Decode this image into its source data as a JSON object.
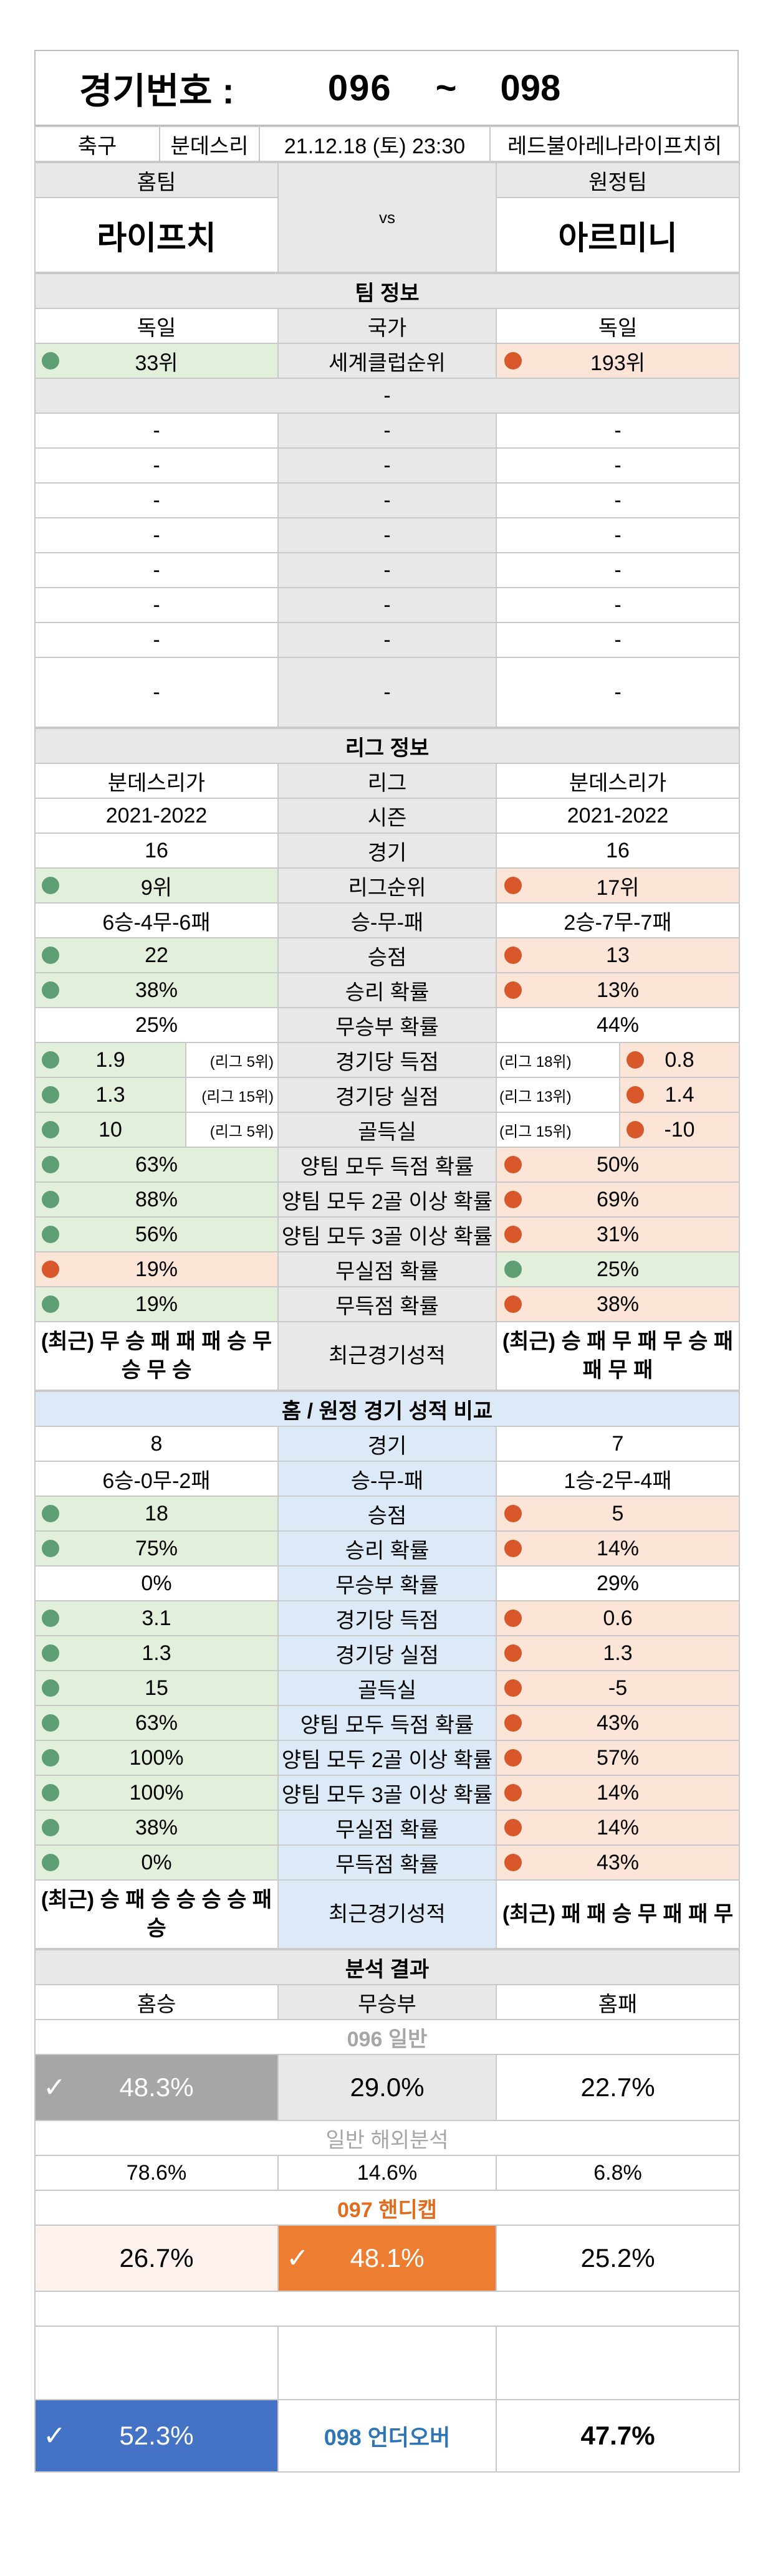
{
  "header": {
    "label": "경기번호 :",
    "from": "096",
    "sep": "~",
    "to": "098"
  },
  "match": {
    "sport": "축구",
    "league": "분데스리",
    "datetime": "21.12.18 (토) 23:30",
    "venue": "레드불아레나라이프치히",
    "home_label": "홈팀",
    "away_label": "원정팀",
    "home": "라이프치",
    "vs": "vs",
    "away": "아르미니"
  },
  "team_info": {
    "title": "팀 정보",
    "country_label": "국가",
    "home_country": "독일",
    "away_country": "독일",
    "rank_label": "세계클럽순위",
    "home_rank": "33위",
    "away_rank": "193위",
    "blank": "-",
    "dash": "-"
  },
  "league_info": {
    "title": "리그 정보",
    "rows": [
      {
        "label": "리그",
        "home": "분데스리가",
        "away": "분데스리가"
      },
      {
        "label": "시즌",
        "home": "2021-2022",
        "away": "2021-2022"
      },
      {
        "label": "경기",
        "home": "16",
        "away": "16"
      },
      {
        "label": "리그순위",
        "home": "9위",
        "away": "17위",
        "hc": "green",
        "ac": "peach"
      },
      {
        "label": "승-무-패",
        "home": "6승-4무-6패",
        "away": "2승-7무-7패"
      },
      {
        "label": "승점",
        "home": "22",
        "away": "13",
        "hc": "green",
        "ac": "peach"
      },
      {
        "label": "승리 확률",
        "home": "38%",
        "away": "13%",
        "hc": "green",
        "ac": "peach"
      },
      {
        "label": "무승부 확률",
        "home": "25%",
        "away": "44%"
      }
    ],
    "split_rows": [
      {
        "label": "경기당 득점",
        "home": "1.9",
        "home_rank": "(리그 5위)",
        "away": "0.8",
        "away_rank": "(리그 18위)"
      },
      {
        "label": "경기당 실점",
        "home": "1.3",
        "home_rank": "(리그 15위)",
        "away": "1.4",
        "away_rank": "(리그 13위)"
      },
      {
        "label": "골득실",
        "home": "10",
        "home_rank": "(리그 5위)",
        "away": "-10",
        "away_rank": "(리그 15위)"
      }
    ],
    "rows2": [
      {
        "label": "양팀 모두 득점 확률",
        "home": "63%",
        "away": "50%",
        "hc": "green",
        "ac": "peach"
      },
      {
        "label": "양팀 모두 2골 이상 확률",
        "home": "88%",
        "away": "69%",
        "hc": "green",
        "ac": "peach"
      },
      {
        "label": "양팀 모두 3골 이상 확률",
        "home": "56%",
        "away": "31%",
        "hc": "green",
        "ac": "peach"
      },
      {
        "label": "무실점 확률",
        "home": "19%",
        "away": "25%",
        "hc": "peach",
        "ac": "green"
      },
      {
        "label": "무득점 확률",
        "home": "19%",
        "away": "38%",
        "hc": "green",
        "ac": "peach"
      }
    ],
    "recent_label": "최근경기성적",
    "home_recent": "(최근) 무 승 패 패 패 승 무 승 무 승",
    "away_recent": "(최근) 승 패 무 패 무 승 패 패 무 패"
  },
  "homeaway": {
    "title": "홈 / 원정 경기 성적 비교",
    "rows": [
      {
        "label": "경기",
        "home": "8",
        "away": "7"
      },
      {
        "label": "승-무-패",
        "home": "6승-0무-2패",
        "away": "1승-2무-4패"
      },
      {
        "label": "승점",
        "home": "18",
        "away": "5",
        "hc": "green",
        "ac": "peach"
      },
      {
        "label": "승리 확률",
        "home": "75%",
        "away": "14%",
        "hc": "green",
        "ac": "peach"
      },
      {
        "label": "무승부 확률",
        "home": "0%",
        "away": "29%"
      },
      {
        "label": "경기당 득점",
        "home": "3.1",
        "away": "0.6",
        "hc": "green",
        "ac": "peach"
      },
      {
        "label": "경기당 실점",
        "home": "1.3",
        "away": "1.3",
        "hc": "green",
        "ac": "peach"
      },
      {
        "label": "골득실",
        "home": "15",
        "away": "-5",
        "hc": "green",
        "ac": "peach"
      },
      {
        "label": "양팀 모두 득점 확률",
        "home": "63%",
        "away": "43%",
        "hc": "green",
        "ac": "peach"
      },
      {
        "label": "양팀 모두 2골 이상 확률",
        "home": "100%",
        "away": "57%",
        "hc": "green",
        "ac": "peach"
      },
      {
        "label": "양팀 모두 3골 이상 확률",
        "home": "100%",
        "away": "14%",
        "hc": "green",
        "ac": "peach"
      },
      {
        "label": "무실점 확률",
        "home": "38%",
        "away": "14%",
        "hc": "green",
        "ac": "peach"
      },
      {
        "label": "무득점 확률",
        "home": "0%",
        "away": "43%",
        "hc": "green",
        "ac": "peach"
      }
    ],
    "recent_label": "최근경기성적",
    "home_recent": "(최근) 승 패 승 승 승 승 패 승",
    "away_recent": "(최근) 패 패 승 무 패 패 무"
  },
  "analysis": {
    "title": "분석 결과",
    "col_home": "홈승",
    "col_draw": "무승부",
    "col_away": "홈패",
    "general_title": "096 일반",
    "general": {
      "home": "48.3%",
      "draw": "29.0%",
      "away": "22.7%"
    },
    "overseas_title": "일반 해외분석",
    "overseas": {
      "home": "78.6%",
      "draw": "14.6%",
      "away": "6.8%"
    },
    "handicap_title": "097 핸디캡",
    "handicap": {
      "home": "26.7%",
      "draw": "48.1%",
      "away": "25.2%"
    },
    "underover_title": "098 언더오버",
    "underover": {
      "under": "52.3%",
      "over": "47.7%"
    },
    "check_mark": "✓"
  },
  "colors": {
    "green": "#e2efda",
    "peach": "#fce4d6",
    "green_dot": "#5e9e73",
    "orange_dot": "#d9582b",
    "blue_header": "#dce9f6",
    "gray_header": "#e8e8e8",
    "pick_gray": "#a6a6a6",
    "pick_orange": "#ed7d31",
    "pick_blue": "#4472c4"
  }
}
